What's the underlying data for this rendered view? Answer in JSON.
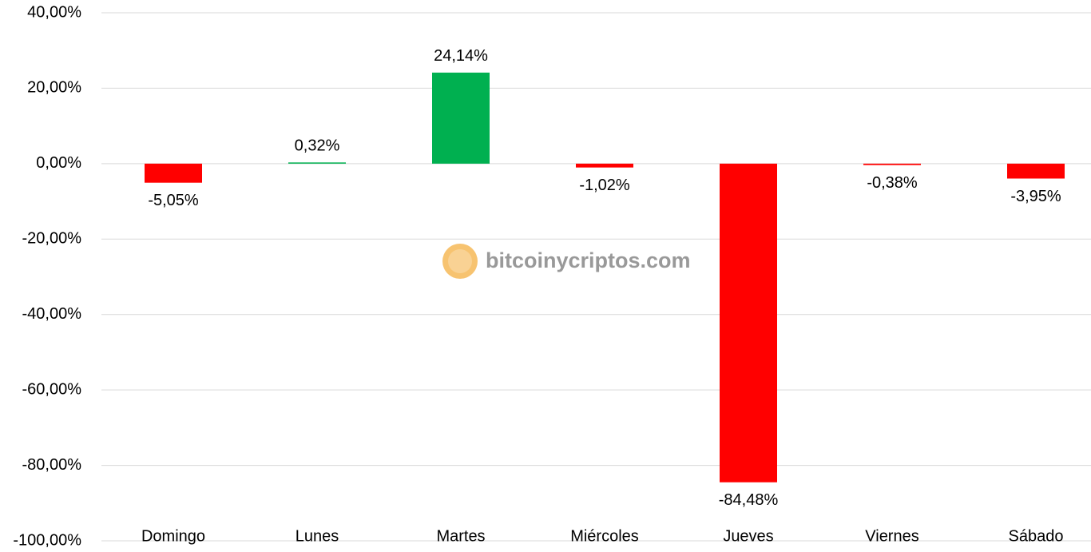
{
  "chart_data": {
    "type": "bar",
    "categories": [
      "Domingo",
      "Lunes",
      "Martes",
      "Miércoles",
      "Jueves",
      "Viernes",
      "Sábado"
    ],
    "values": [
      -5.05,
      0.32,
      24.14,
      -1.02,
      -84.48,
      -0.38,
      -3.95
    ],
    "value_labels": [
      "-5,05%",
      "0,32%",
      "24,14%",
      "-1,02%",
      "-84,48%",
      "-0,38%",
      "-3,95%"
    ],
    "colors": [
      "#ff0000",
      "#00b050",
      "#00b050",
      "#ff0000",
      "#ff0000",
      "#ff0000",
      "#ff0000"
    ],
    "ylim": [
      -100,
      40
    ],
    "yticks": [
      {
        "value": -100,
        "label": "-100,00%"
      },
      {
        "value": -80,
        "label": "-80,00%"
      },
      {
        "value": -60,
        "label": "-60,00%"
      },
      {
        "value": -40,
        "label": "-40,00%"
      },
      {
        "value": -20,
        "label": "-20,00%"
      },
      {
        "value": 0,
        "label": "0,00%"
      },
      {
        "value": 20,
        "label": "20,00%"
      },
      {
        "value": 40,
        "label": "40,00%"
      }
    ],
    "grid": true,
    "watermark": "bitcoinycriptos.com"
  }
}
